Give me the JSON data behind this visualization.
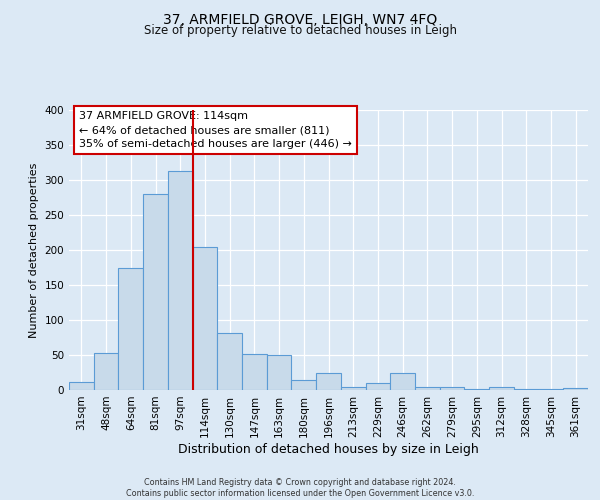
{
  "title": "37, ARMFIELD GROVE, LEIGH, WN7 4FQ",
  "subtitle": "Size of property relative to detached houses in Leigh",
  "xlabel": "Distribution of detached houses by size in Leigh",
  "ylabel": "Number of detached properties",
  "bin_labels": [
    "31sqm",
    "48sqm",
    "64sqm",
    "81sqm",
    "97sqm",
    "114sqm",
    "130sqm",
    "147sqm",
    "163sqm",
    "180sqm",
    "196sqm",
    "213sqm",
    "229sqm",
    "246sqm",
    "262sqm",
    "279sqm",
    "295sqm",
    "312sqm",
    "328sqm",
    "345sqm",
    "361sqm"
  ],
  "bar_values": [
    12,
    53,
    175,
    280,
    313,
    205,
    82,
    52,
    50,
    15,
    25,
    5,
    10,
    25,
    5,
    5,
    2,
    5,
    2,
    2,
    3
  ],
  "bar_color": "#c8daea",
  "bar_edge_color": "#5b9bd5",
  "background_color": "#dce9f5",
  "grid_color": "#ffffff",
  "vline_index": 5,
  "property_label": "37 ARMFIELD GROVE: 114sqm",
  "annotation_line1": "← 64% of detached houses are smaller (811)",
  "annotation_line2": "35% of semi-detached houses are larger (446) →",
  "box_facecolor": "#ffffff",
  "box_edgecolor": "#cc0000",
  "vline_color": "#cc0000",
  "footer_line1": "Contains HM Land Registry data © Crown copyright and database right 2024.",
  "footer_line2": "Contains public sector information licensed under the Open Government Licence v3.0.",
  "ylim": [
    0,
    400
  ],
  "yticks": [
    0,
    50,
    100,
    150,
    200,
    250,
    300,
    350,
    400
  ],
  "title_fontsize": 10,
  "subtitle_fontsize": 8.5,
  "xlabel_fontsize": 9,
  "ylabel_fontsize": 8,
  "tick_fontsize": 7.5,
  "annot_fontsize": 8
}
